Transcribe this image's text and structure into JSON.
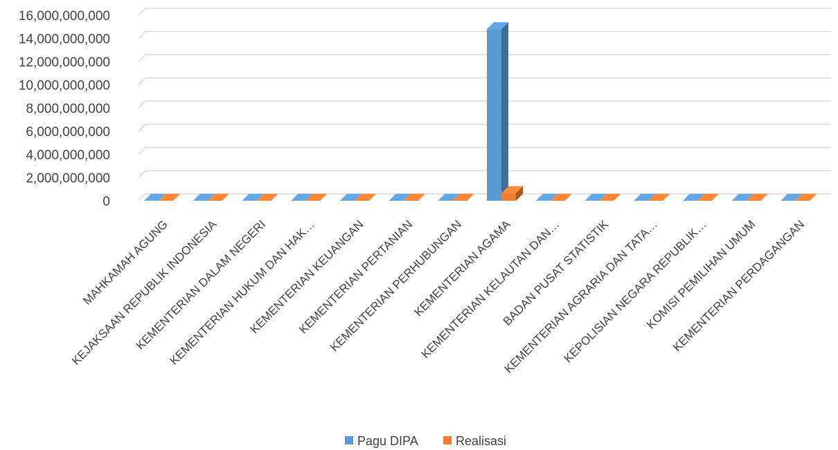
{
  "chart_data": {
    "type": "bar",
    "categories": [
      "MAHKAMAH AGUNG",
      "KEJAKSAAN REPUBLIK INDONESIA",
      "KEMENTERIAN DALAM  NEGERI",
      "KEMENTERIAN HUKUM DAN HAK…",
      "KEMENTERIAN KEUANGAN",
      "KEMENTERIAN PERTANIAN",
      "KEMENTERIAN PERHUBUNGAN",
      "KEMENTERIAN AGAMA",
      "KEMENTERIAN KELAUTAN DAN…",
      "BADAN PUSAT STATISTIK",
      "KEMENTERIAN AGRARIA DAN TATA…",
      "KEPOLISIAN NEGARA REPUBLIK…",
      "KOMISI PEMILIHAN UMUM",
      "KEMENTERIAN PERDAGANGAN"
    ],
    "series": [
      {
        "name": "Pagu DIPA",
        "color": "#5b9bd5",
        "values": [
          0,
          0,
          0,
          0,
          0,
          0,
          0,
          14800000000,
          0,
          0,
          0,
          0,
          0,
          0
        ]
      },
      {
        "name": "Realisasi",
        "color": "#ed7d31",
        "values": [
          0,
          0,
          0,
          0,
          0,
          0,
          0,
          650000000,
          0,
          0,
          0,
          0,
          0,
          0
        ]
      }
    ],
    "y_ticks": [
      "0",
      "2,000,000,000",
      "4,000,000,000",
      "6,000,000,000",
      "8,000,000,000",
      "10,000,000,000",
      "12,000,000,000",
      "14,000,000,000",
      "16,000,000,000"
    ],
    "ylim": [
      0,
      16000000000
    ],
    "grid": true,
    "legend_position": "bottom",
    "style": "3d-clustered-column"
  }
}
